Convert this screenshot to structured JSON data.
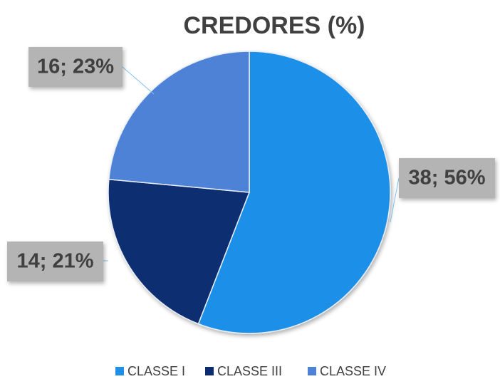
{
  "chart_data": {
    "type": "pie",
    "title": "CREDORES (%)",
    "categories": [
      "CLASSE I",
      "CLASSE III",
      "CLASSE IV"
    ],
    "values": [
      38,
      14,
      16
    ],
    "value_labels": [
      "38; 56%",
      "14; 21%",
      "16; 23%"
    ],
    "colors": [
      "#1f8fe8",
      "#0b2d6f",
      "#4d82d6"
    ],
    "legend": "bottom"
  }
}
